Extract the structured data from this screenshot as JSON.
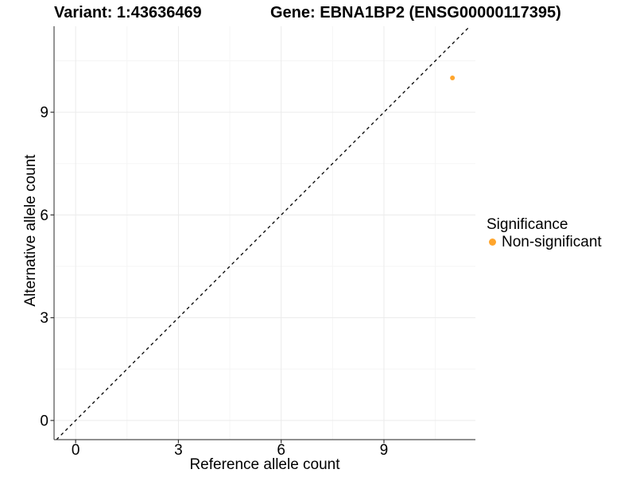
{
  "chart_data": {
    "type": "scatter",
    "titles": {
      "left": "Variant: 1:43636469",
      "right": "Gene: EBNA1BP2 (ENSG00000117395)"
    },
    "xlabel": "Reference allele count",
    "ylabel": "Alternative allele count",
    "xticks": [
      0,
      3,
      6,
      9
    ],
    "yticks": [
      0,
      3,
      6,
      9
    ],
    "x_minor": [
      1.5,
      4.5,
      7.5,
      10.5
    ],
    "y_minor": [
      1.5,
      4.5,
      7.5,
      10.5
    ],
    "xlim": [
      -0.63,
      11.67
    ],
    "ylim": [
      -0.56,
      11.51
    ],
    "grid": true,
    "abline": {
      "slope": 1,
      "intercept": 0,
      "style": "dashed",
      "color": "#000000"
    },
    "series": [
      {
        "name": "Non-significant",
        "color": "#FFA52C",
        "points": [
          {
            "x": 11,
            "y": 10
          }
        ]
      }
    ],
    "legend": {
      "title": "Significance",
      "position": "right",
      "entries": [
        {
          "label": "Non-significant",
          "color": "#FFA52C"
        }
      ]
    },
    "colors": {
      "grid_major": "#EBEBEB",
      "grid_minor": "#F5F5F5",
      "axis_line": "#4D4D4D",
      "tick_mark": "#333333",
      "text": "#000000"
    }
  }
}
